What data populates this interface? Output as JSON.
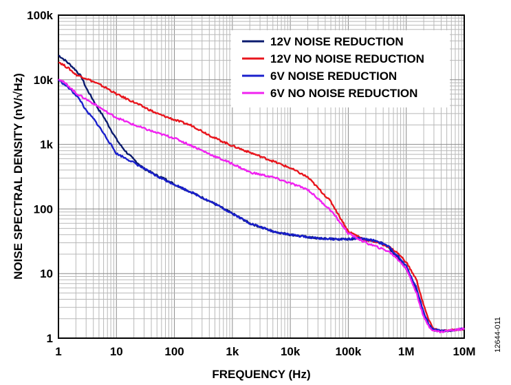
{
  "chart_data": {
    "type": "line",
    "xlabel": "FREQUENCY (Hz)",
    "ylabel": "NOISE SPECTRAL DENSITY (nV/√Hz)",
    "x_scale": "log",
    "y_scale": "log",
    "xlim": [
      1,
      10000000
    ],
    "ylim": [
      1,
      100000
    ],
    "grid": true,
    "legend_position": "top-right",
    "x_ticks": [
      {
        "value": 1,
        "label": "1"
      },
      {
        "value": 10,
        "label": "10"
      },
      {
        "value": 100,
        "label": "100"
      },
      {
        "value": 1000,
        "label": "1k"
      },
      {
        "value": 10000,
        "label": "10k"
      },
      {
        "value": 100000,
        "label": "100k"
      },
      {
        "value": 1000000,
        "label": "1M"
      },
      {
        "value": 10000000,
        "label": "10M"
      }
    ],
    "y_ticks": [
      {
        "value": 1,
        "label": "1"
      },
      {
        "value": 10,
        "label": "10"
      },
      {
        "value": 100,
        "label": "100"
      },
      {
        "value": 1000,
        "label": "1k"
      },
      {
        "value": 10000,
        "label": "10k"
      },
      {
        "value": 100000,
        "label": "100k"
      }
    ],
    "figure_id": "12644-011",
    "series": [
      {
        "name": "12V NOISE REDUCTION",
        "color": "#0a1a6e",
        "x": [
          1,
          1.3,
          1.6,
          2,
          2.5,
          3,
          4,
          5,
          6,
          7,
          8,
          10,
          12,
          15,
          20,
          30,
          50,
          70,
          100,
          200,
          500,
          1000,
          2000,
          5000,
          10000,
          30000,
          70000,
          100000,
          150000,
          200000,
          300000,
          400000,
          500000,
          700000,
          1000000,
          1500000,
          2000000,
          2500000,
          3000000,
          4000000,
          5000000,
          7000000,
          10000000
        ],
        "y": [
          24000,
          20000,
          17000,
          14000,
          11000,
          7500,
          4800,
          3400,
          2700,
          2100,
          1700,
          1200,
          950,
          750,
          580,
          420,
          330,
          290,
          240,
          180,
          120,
          85,
          60,
          45,
          40,
          35,
          34,
          34,
          35,
          34,
          32,
          29,
          25,
          18,
          12,
          5.5,
          2.2,
          1.5,
          1.3,
          1.3,
          1.3,
          1.35,
          1.4
        ]
      },
      {
        "name": "12V NO NOISE REDUCTION",
        "color": "#e8141c",
        "x": [
          1,
          1.5,
          2,
          3,
          5,
          7,
          10,
          20,
          50,
          100,
          200,
          500,
          1000,
          2000,
          5000,
          10000,
          20000,
          50000,
          100000,
          200000,
          300000,
          500000,
          700000,
          1000000,
          1500000,
          2000000,
          2500000,
          3000000,
          4000000,
          5000000,
          7000000,
          10000000
        ],
        "y": [
          19000,
          15000,
          12000,
          10500,
          8500,
          7300,
          6000,
          4500,
          3000,
          2400,
          1950,
          1250,
          950,
          750,
          550,
          430,
          310,
          130,
          45,
          33,
          31,
          26,
          21,
          15,
          8,
          3.2,
          1.8,
          1.4,
          1.3,
          1.3,
          1.35,
          1.4
        ]
      },
      {
        "name": "6V NOISE REDUCTION",
        "color": "#1a1fcc",
        "x": [
          1,
          1.5,
          2,
          2.5,
          3,
          4,
          5,
          7,
          10,
          15,
          20,
          30,
          50,
          100,
          200,
          500,
          1000,
          2000,
          5000,
          10000,
          30000,
          70000,
          100000,
          150000,
          200000,
          300000,
          500000,
          700000,
          1000000,
          1500000,
          2000000,
          2500000,
          3000000,
          4000000,
          5000000,
          7000000,
          10000000
        ],
        "y": [
          10000,
          7500,
          5800,
          4500,
          3300,
          2500,
          1900,
          1200,
          720,
          600,
          520,
          420,
          320,
          240,
          180,
          120,
          85,
          60,
          45,
          40,
          35,
          34,
          34,
          35,
          34,
          32,
          26,
          19,
          13,
          6,
          2.5,
          1.6,
          1.35,
          1.3,
          1.3,
          1.35,
          1.4
        ]
      },
      {
        "name": "6V NO NOISE REDUCTION",
        "color": "#f021f0",
        "x": [
          1,
          1.5,
          2,
          3,
          5,
          7,
          10,
          20,
          50,
          100,
          200,
          500,
          1000,
          2000,
          5000,
          10000,
          20000,
          50000,
          100000,
          200000,
          500000,
          700000,
          1000000,
          1500000,
          2000000,
          2500000,
          3000000,
          4000000,
          5000000,
          7000000,
          10000000
        ],
        "y": [
          10500,
          8000,
          6200,
          5000,
          3800,
          3100,
          2600,
          2000,
          1500,
          1250,
          950,
          650,
          500,
          370,
          310,
          250,
          200,
          95,
          42,
          30,
          22,
          17,
          12,
          5,
          2.1,
          1.5,
          1.3,
          1.25,
          1.3,
          1.35,
          1.4
        ]
      }
    ]
  }
}
